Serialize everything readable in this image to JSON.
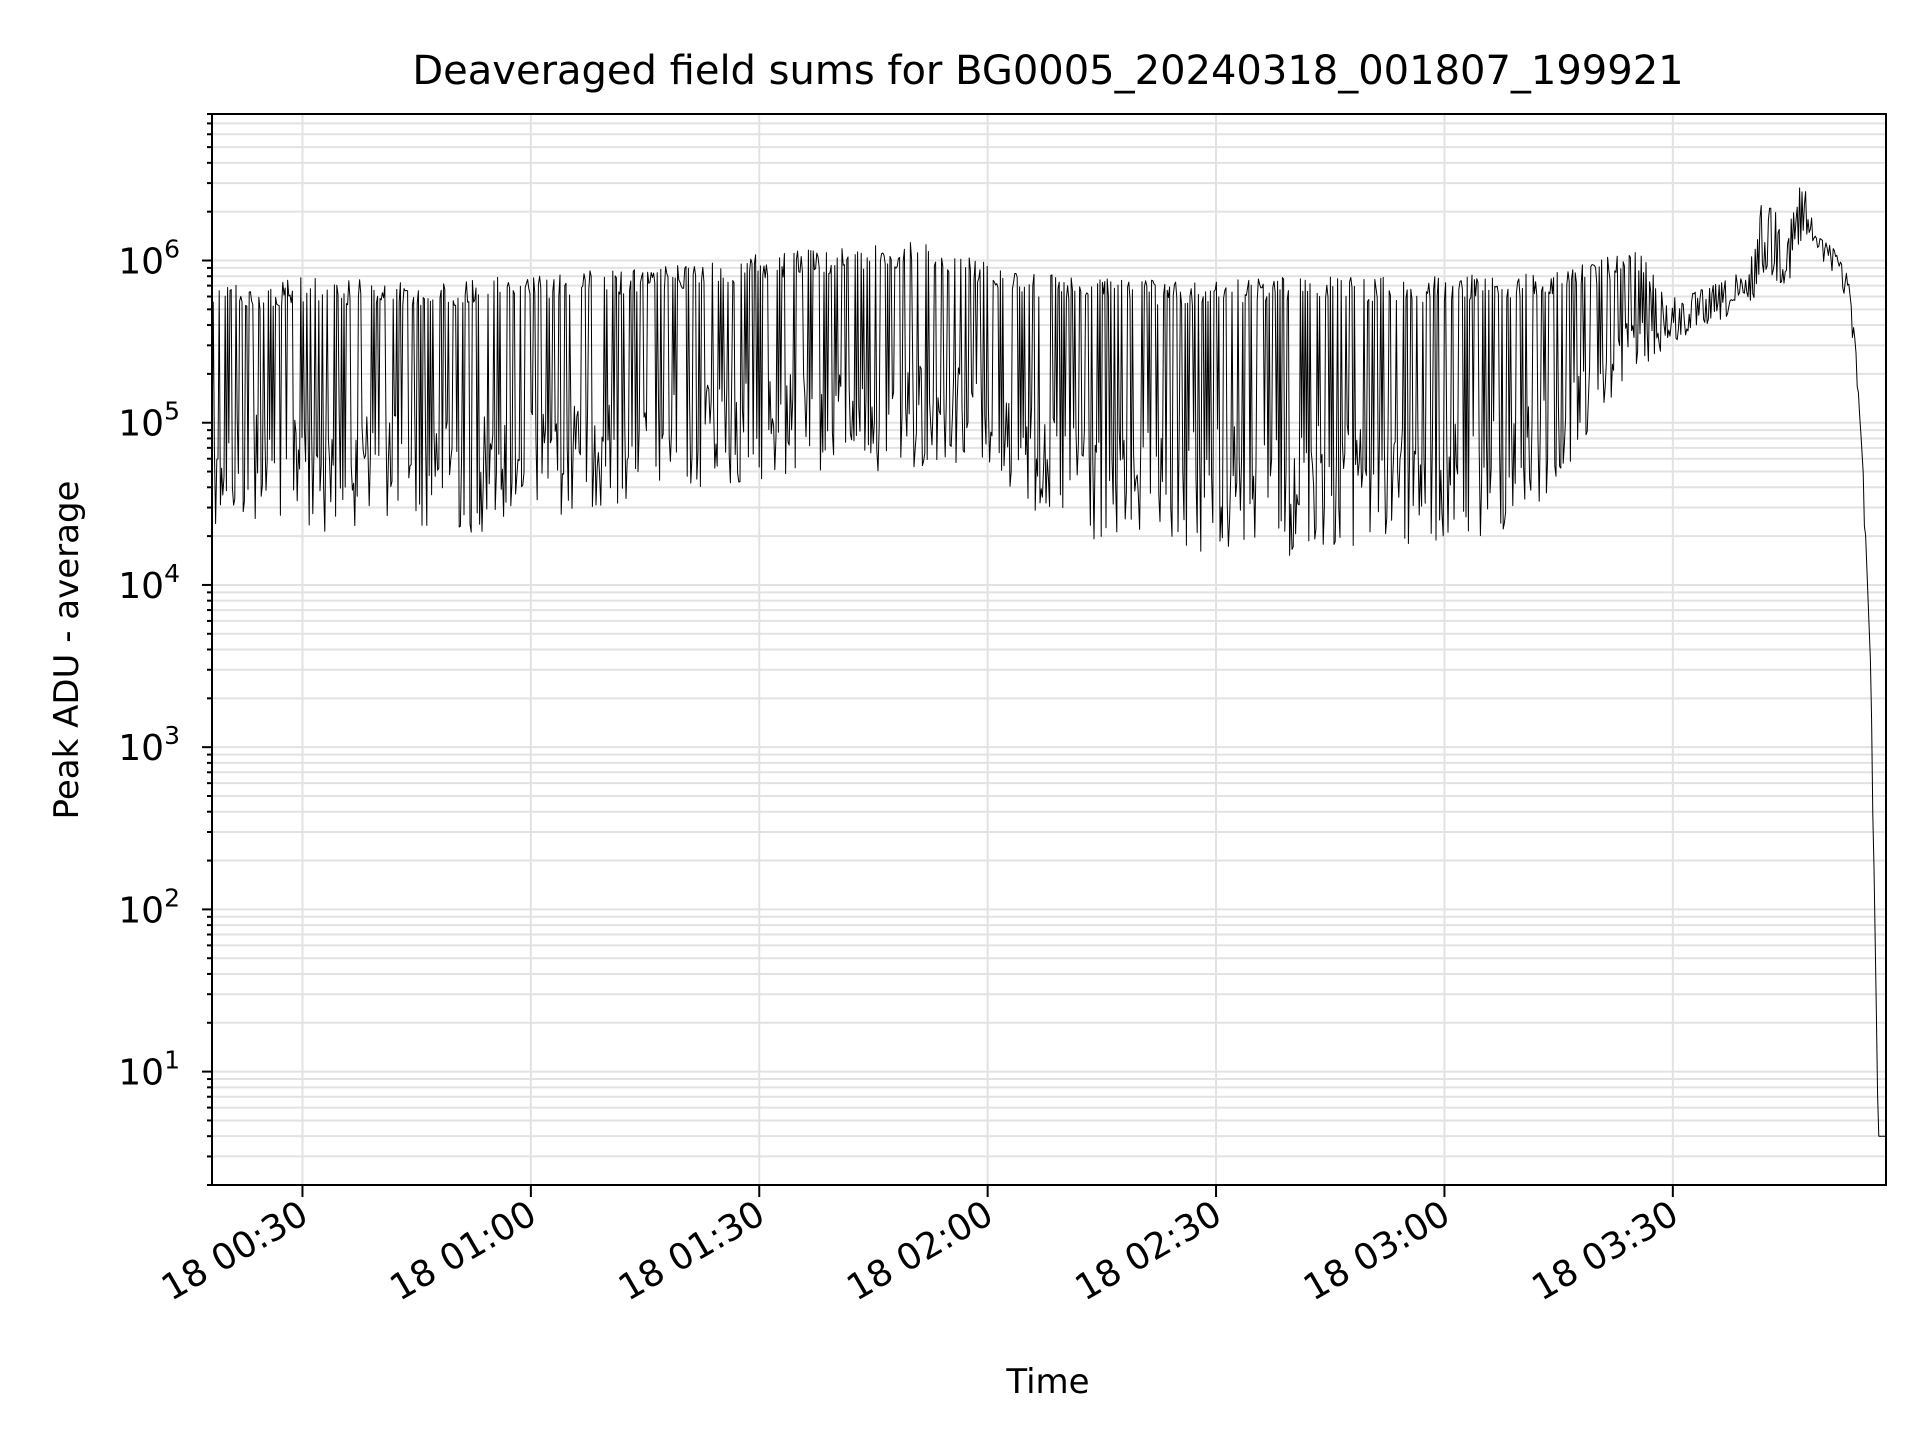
{
  "chart_data": {
    "type": "line",
    "title": "Deaveraged field sums for BG0005_20240318_001807_199921",
    "xlabel": "Time",
    "ylabel": "Peak ADU - average",
    "yscale": "log",
    "ylim": [
      2,
      8000000
    ],
    "xlim": [
      "2024-03-18 00:18:07",
      "2024-03-18 03:58:00"
    ],
    "grid": true,
    "x_ticks": [
      {
        "t": "2024-03-18 00:30:00",
        "label": "18 00:30"
      },
      {
        "t": "2024-03-18 01:00:00",
        "label": "18 01:00"
      },
      {
        "t": "2024-03-18 01:30:00",
        "label": "18 01:30"
      },
      {
        "t": "2024-03-18 02:00:00",
        "label": "18 02:00"
      },
      {
        "t": "2024-03-18 02:30:00",
        "label": "18 02:30"
      },
      {
        "t": "2024-03-18 03:00:00",
        "label": "18 03:00"
      },
      {
        "t": "2024-03-18 03:30:00",
        "label": "18 03:30"
      }
    ],
    "y_ticks": [
      {
        "value": 10,
        "base": "10",
        "exp": "1"
      },
      {
        "value": 100,
        "base": "10",
        "exp": "2"
      },
      {
        "value": 1000,
        "base": "10",
        "exp": "3"
      },
      {
        "value": 10000,
        "base": "10",
        "exp": "4"
      },
      {
        "value": 100000,
        "base": "10",
        "exp": "5"
      },
      {
        "value": 1000000,
        "base": "10",
        "exp": "6"
      }
    ],
    "series": [
      {
        "color": "#000000",
        "line_width": 1,
        "x": [
          "2024-03-18 00:18:07",
          "2024-03-18 00:20:00",
          "2024-03-18 00:22:00",
          "2024-03-18 00:25:00",
          "2024-03-18 00:30:00",
          "2024-03-18 00:35:00",
          "2024-03-18 00:40:00",
          "2024-03-18 00:45:00",
          "2024-03-18 00:50:00",
          "2024-03-18 00:55:00",
          "2024-03-18 01:00:00",
          "2024-03-18 01:05:00",
          "2024-03-18 01:10:00",
          "2024-03-18 01:15:00",
          "2024-03-18 01:20:00",
          "2024-03-18 01:25:00",
          "2024-03-18 01:30:00",
          "2024-03-18 01:35:00",
          "2024-03-18 01:40:00",
          "2024-03-18 01:45:00",
          "2024-03-18 01:50:00",
          "2024-03-18 01:55:00",
          "2024-03-18 02:00:00",
          "2024-03-18 02:05:00",
          "2024-03-18 02:10:00",
          "2024-03-18 02:15:00",
          "2024-03-18 02:20:00",
          "2024-03-18 02:25:00",
          "2024-03-18 02:30:00",
          "2024-03-18 02:35:00",
          "2024-03-18 02:40:00",
          "2024-03-18 02:45:00",
          "2024-03-18 02:50:00",
          "2024-03-18 02:55:00",
          "2024-03-18 03:00:00",
          "2024-03-18 03:05:00",
          "2024-03-18 03:10:00",
          "2024-03-18 03:15:00",
          "2024-03-18 03:20:00",
          "2024-03-18 03:25:00",
          "2024-03-18 03:30:00",
          "2024-03-18 03:35:00",
          "2024-03-18 03:40:00",
          "2024-03-18 03:42:00",
          "2024-03-18 03:45:00",
          "2024-03-18 03:47:00",
          "2024-03-18 03:49:00",
          "2024-03-18 03:51:00",
          "2024-03-18 03:53:00",
          "2024-03-18 03:54:00",
          "2024-03-18 03:55:00",
          "2024-03-18 03:56:00",
          "2024-03-18 03:57:00",
          "2024-03-18 03:58:00"
        ],
        "y_high": [
          700000,
          800000,
          750000,
          700000,
          800000,
          750000,
          780000,
          700000,
          750000,
          800000,
          820000,
          850000,
          880000,
          900000,
          950000,
          1000000,
          1100000,
          1150000,
          1200000,
          1250000,
          1300000,
          1200000,
          1000000,
          850000,
          800000,
          780000,
          760000,
          750000,
          760000,
          780000,
          800000,
          820000,
          800000,
          780000,
          800000,
          820000,
          850000,
          900000,
          1000000,
          1200000,
          600000,
          700000,
          900000,
          2800000,
          1600000,
          3500000,
          1400000,
          1200000,
          800000,
          300000,
          50000,
          3000,
          4,
          4
        ],
        "y_low": [
          25000,
          20000,
          22000,
          25000,
          20000,
          22000,
          25000,
          23000,
          18000,
          22000,
          25000,
          27000,
          30000,
          35000,
          35000,
          38000,
          40000,
          45000,
          50000,
          50000,
          52000,
          55000,
          50000,
          30000,
          18000,
          15000,
          15000,
          15000,
          15000,
          15000,
          15000,
          16000,
          16000,
          15000,
          15000,
          18000,
          22000,
          40000,
          100000,
          200000,
          300000,
          400000,
          500000,
          800000,
          700000,
          1000000,
          1400000,
          1200000,
          800000,
          300000,
          50000,
          3000,
          4,
          4
        ]
      }
    ]
  }
}
